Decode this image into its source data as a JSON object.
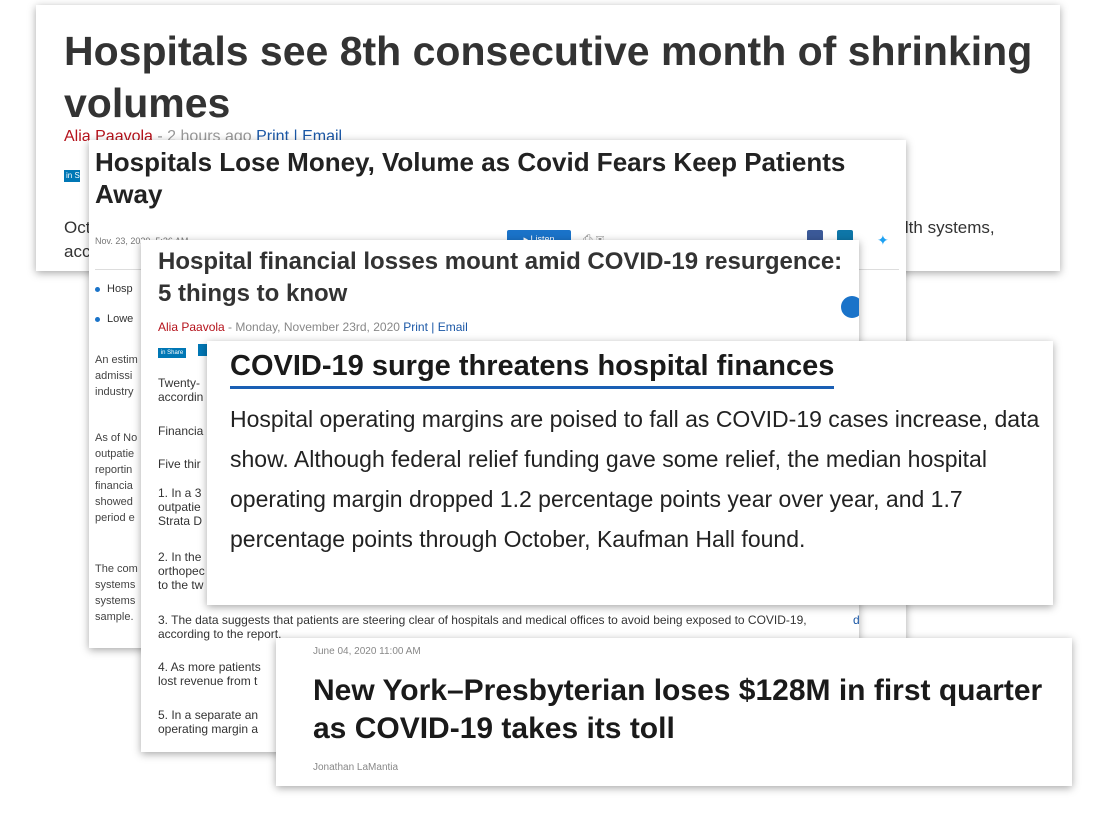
{
  "card1": {
    "title": "Hospitals see 8th consecutive month of shrinking volumes",
    "author": "Alia Paavola",
    "time": " - 2 hours ago ",
    "print": "Print",
    "email": " | Email",
    "share": "in Sh",
    "lede_start": "Oct",
    "lede_end": "ealth systems,",
    "lede_line2": "acc"
  },
  "card2": {
    "title": "Hospitals Lose Money, Volume as Covid Fears Keep Patients Away",
    "date": "Nov. 23, 2020, 5:36 AM",
    "listen": "Listen",
    "bullets": [
      "Hosp",
      "Lowe"
    ],
    "paragraphs": [
      "An estim admissi industry",
      "As of No outpatie reportin financia showed period e",
      "The com systems systems sample."
    ]
  },
  "card3": {
    "title": "Hospital financial losses mount amid COVID-19 resurgence: 5 things to know",
    "author": "Alia Paavola",
    "date": " - Monday, November 23rd, 2020 ",
    "print": "Print",
    "email": " | Email",
    "share": "in Share",
    "paragraphs": [
      "Twenty- accordin",
      "Financia",
      "Five thir",
      "1. In a 3 outpatie Strata D",
      "2. In the orthopec to the tw",
      "3. The data suggests that patients are steering clear of hospitals and medical offices to avoid being exposed to COVID-19, according to the report.",
      "4. As more patients lost revenue from t",
      "5. In a separate an operating margin a"
    ],
    "link_fragment": "d"
  },
  "card4": {
    "title": "COVID-19 surge threatens hospital finances",
    "body": "Hospital operating margins are poised to fall as COVID-19 cases increase, data show. Although federal relief funding gave some relief, the median hospital operating margin dropped 1.2 percentage points year over year, and 1.7 percentage points through October, Kaufman Hall found."
  },
  "card5": {
    "date": "June 04, 2020 11:00 AM",
    "title": "New York–Presbyterian loses $128M in first quarter as COVID-19 takes its toll",
    "author": "Jonathan LaMantia"
  }
}
